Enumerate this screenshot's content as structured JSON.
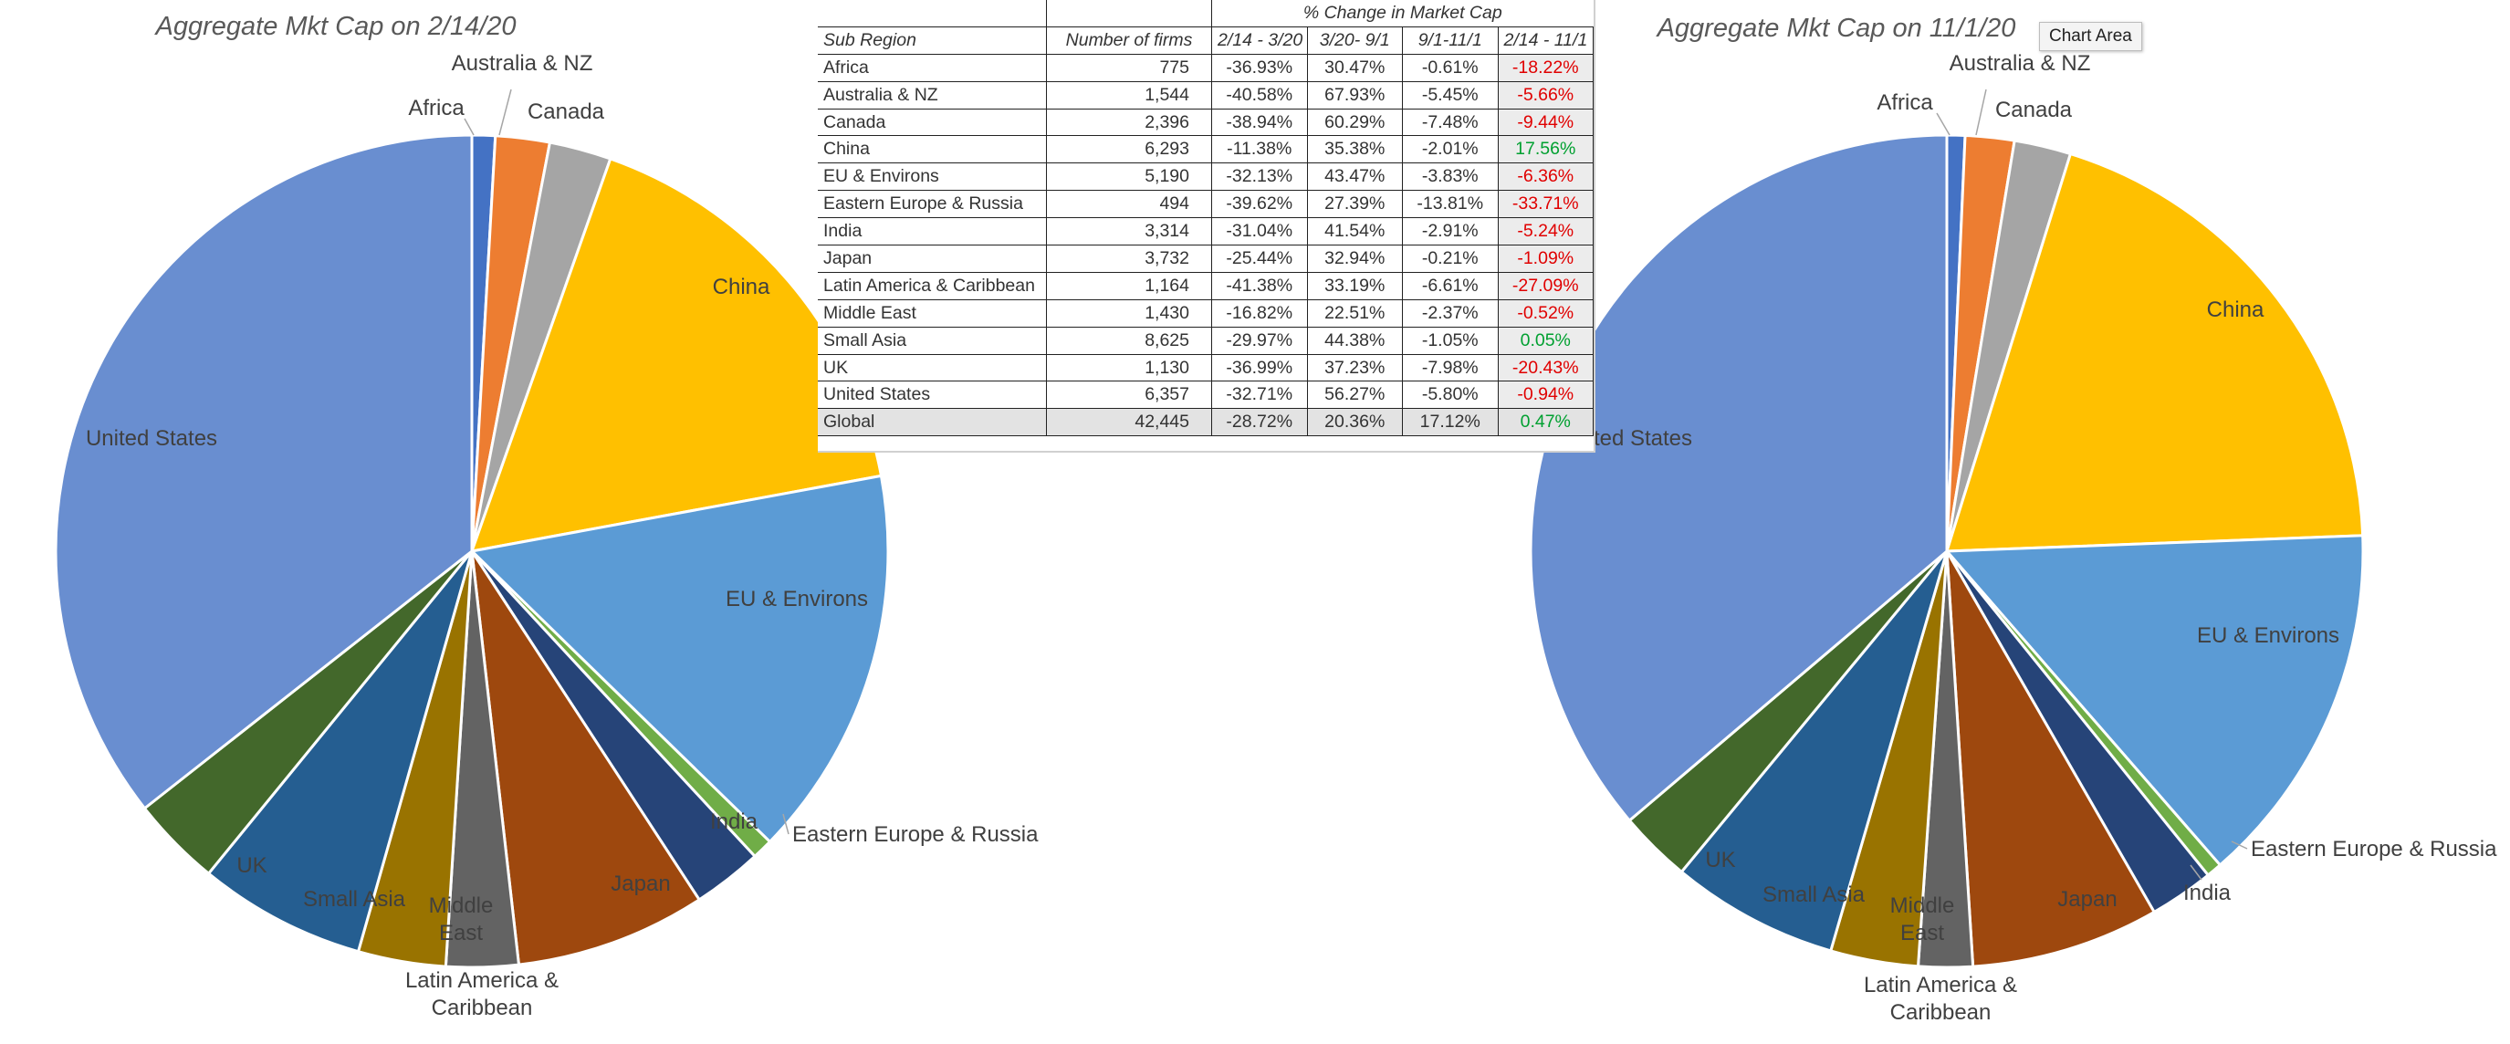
{
  "chart_data": [
    {
      "type": "pie",
      "title": "Aggregate Mkt Cap on 2/14/20",
      "slices": [
        {
          "label": "Africa",
          "value": 0.9,
          "color": "#4472c4"
        },
        {
          "label": "Australia & NZ",
          "value": 2.1,
          "color": "#ed7d31"
        },
        {
          "label": "Canada",
          "value": 2.4,
          "color": "#a5a5a5"
        },
        {
          "label": "China",
          "value": 16.7,
          "color": "#ffc000"
        },
        {
          "label": "EU & Environs",
          "value": 15.2,
          "color": "#5b9bd5"
        },
        {
          "label": "Eastern Europe & Russia",
          "value": 0.8,
          "color": "#70ad47"
        },
        {
          "label": "India",
          "value": 2.7,
          "color": "#264478"
        },
        {
          "label": "Japan",
          "value": 7.4,
          "color": "#9e480e"
        },
        {
          "label": "Latin America & Caribbean",
          "value": 2.8,
          "color": "#636363"
        },
        {
          "label": "Middle East",
          "value": 3.4,
          "color": "#997300"
        },
        {
          "label": "Small Asia",
          "value": 6.5,
          "color": "#255e91"
        },
        {
          "label": "UK",
          "value": 3.5,
          "color": "#43682b"
        },
        {
          "label": "United States",
          "value": 35.6,
          "color": "#698ed0"
        }
      ]
    },
    {
      "type": "pie",
      "title": "Aggregate Mkt Cap on 11/1/20",
      "slices": [
        {
          "label": "Africa",
          "value": 0.7,
          "color": "#4472c4"
        },
        {
          "label": "Australia & NZ",
          "value": 1.9,
          "color": "#ed7d31"
        },
        {
          "label": "Canada",
          "value": 2.2,
          "color": "#a5a5a5"
        },
        {
          "label": "China",
          "value": 19.6,
          "color": "#ffc000"
        },
        {
          "label": "EU & Environs",
          "value": 14.2,
          "color": "#5b9bd5"
        },
        {
          "label": "Eastern Europe & Russia",
          "value": 0.6,
          "color": "#70ad47"
        },
        {
          "label": "India",
          "value": 2.5,
          "color": "#264478"
        },
        {
          "label": "Japan",
          "value": 7.3,
          "color": "#9e480e"
        },
        {
          "label": "Latin America & Caribbean",
          "value": 2.1,
          "color": "#636363"
        },
        {
          "label": "Middle East",
          "value": 3.4,
          "color": "#997300"
        },
        {
          "label": "Small Asia",
          "value": 6.5,
          "color": "#255e91"
        },
        {
          "label": "UK",
          "value": 2.8,
          "color": "#43682b"
        },
        {
          "label": "United States",
          "value": 36.2,
          "color": "#698ed0"
        }
      ]
    },
    {
      "type": "table",
      "title": "% Change in Market Cap",
      "columns": [
        "Sub Region",
        "Number of firms",
        "2/14 - 3/20",
        "3/20- 9/1",
        "9/1-11/1",
        "2/14 - 11/1"
      ],
      "rows": [
        [
          "Africa",
          "775",
          "-36.93%",
          "30.47%",
          "-0.61%",
          "-18.22%"
        ],
        [
          "Australia & NZ",
          "1,544",
          "-40.58%",
          "67.93%",
          "-5.45%",
          "-5.66%"
        ],
        [
          "Canada",
          "2,396",
          "-38.94%",
          "60.29%",
          "-7.48%",
          "-9.44%"
        ],
        [
          "China",
          "6,293",
          "-11.38%",
          "35.38%",
          "-2.01%",
          "17.56%"
        ],
        [
          "EU & Environs",
          "5,190",
          "-32.13%",
          "43.47%",
          "-3.83%",
          "-6.36%"
        ],
        [
          "Eastern Europe & Russia",
          "494",
          "-39.62%",
          "27.39%",
          "-13.81%",
          "-33.71%"
        ],
        [
          "India",
          "3,314",
          "-31.04%",
          "41.54%",
          "-2.91%",
          "-5.24%"
        ],
        [
          "Japan",
          "3,732",
          "-25.44%",
          "32.94%",
          "-0.21%",
          "-1.09%"
        ],
        [
          "Latin America & Caribbean",
          "1,164",
          "-41.38%",
          "33.19%",
          "-6.61%",
          "-27.09%"
        ],
        [
          "Middle East",
          "1,430",
          "-16.82%",
          "22.51%",
          "-2.37%",
          "-0.52%"
        ],
        [
          "Small Asia",
          "8,625",
          "-29.97%",
          "44.38%",
          "-1.05%",
          "0.05%"
        ],
        [
          "UK",
          "1,130",
          "-36.99%",
          "37.23%",
          "-7.98%",
          "-20.43%"
        ],
        [
          "United States",
          "6,357",
          "-32.71%",
          "56.27%",
          "-5.80%",
          "-0.94%"
        ],
        [
          "Global",
          "42,445",
          "-28.72%",
          "20.36%",
          "17.12%",
          "0.47%"
        ]
      ]
    }
  ],
  "tooltip": "Chart Area",
  "colors": {
    "negative": "#e00000",
    "positive": "#00a030"
  }
}
